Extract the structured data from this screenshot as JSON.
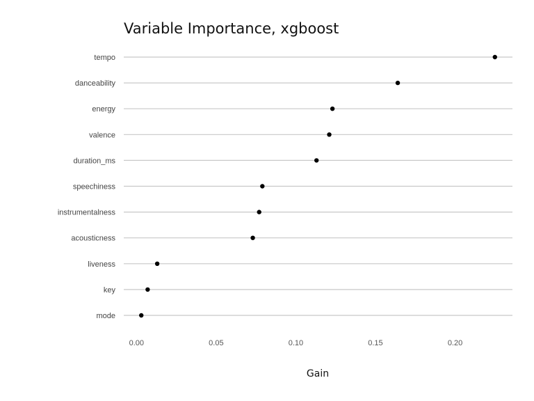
{
  "chart_data": {
    "type": "scatter",
    "title": "Variable Importance, xgboost",
    "xlabel": "Gain",
    "ylabel": "",
    "xlim": [
      -0.008,
      0.236
    ],
    "xticks": [
      0.0,
      0.05,
      0.1,
      0.15,
      0.2
    ],
    "xtick_labels": [
      "0.00",
      "0.05",
      "0.10",
      "0.15",
      "0.20"
    ],
    "categories": [
      "tempo",
      "danceability",
      "energy",
      "valence",
      "duration_ms",
      "speechiness",
      "instrumentalness",
      "acousticness",
      "liveness",
      "key",
      "mode"
    ],
    "values": [
      0.225,
      0.164,
      0.123,
      0.121,
      0.113,
      0.079,
      0.077,
      0.073,
      0.013,
      0.007,
      0.003
    ],
    "grid": "horizontal",
    "legend": "none",
    "colors": {
      "point": "#000000",
      "grid": "#c8c8c8"
    }
  }
}
